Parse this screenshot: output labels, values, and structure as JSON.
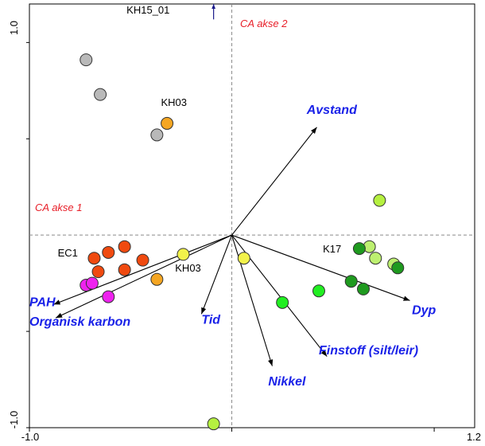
{
  "chart_data": {
    "type": "scatter",
    "xlim": [
      -1.0,
      1.2
    ],
    "ylim": [
      -1.0,
      1.2
    ],
    "x_tick_labels": [
      "-1.0",
      "1.2"
    ],
    "y_tick_labels": [
      "1.0",
      "-1.0"
    ],
    "axis_label_1": "CA akse 1",
    "axis_label_2": "CA akse 2",
    "colors": {
      "grey": "#b9b9b9",
      "orange": "#f5a623",
      "red_orange": "#f04a10",
      "magenta": "#ee22ee",
      "yellow": "#f2f24a",
      "lime": "#b5f040",
      "light_green": "#bdf070",
      "bright_green": "#22ee22",
      "dark_green": "#1f9a1f",
      "vector_text": "#1a22e8",
      "axis_text": "#e8202a",
      "arrow_blue": "#1a1a8a"
    },
    "points": [
      {
        "x": -0.72,
        "y": 0.91,
        "color": "grey"
      },
      {
        "x": -0.65,
        "y": 0.73,
        "color": "grey"
      },
      {
        "x": -0.37,
        "y": 0.52,
        "color": "grey"
      },
      {
        "x": -0.32,
        "y": 0.58,
        "color": "orange"
      },
      {
        "x": -0.68,
        "y": -0.12,
        "color": "red_orange"
      },
      {
        "x": -0.61,
        "y": -0.09,
        "color": "red_orange"
      },
      {
        "x": -0.53,
        "y": -0.06,
        "color": "red_orange"
      },
      {
        "x": -0.66,
        "y": -0.19,
        "color": "red_orange"
      },
      {
        "x": -0.53,
        "y": -0.18,
        "color": "red_orange"
      },
      {
        "x": -0.44,
        "y": -0.13,
        "color": "red_orange"
      },
      {
        "x": -0.37,
        "y": -0.23,
        "color": "orange"
      },
      {
        "x": -0.72,
        "y": -0.26,
        "color": "magenta"
      },
      {
        "x": -0.69,
        "y": -0.25,
        "color": "magenta"
      },
      {
        "x": -0.61,
        "y": -0.32,
        "color": "magenta"
      },
      {
        "x": -0.24,
        "y": -0.1,
        "color": "yellow"
      },
      {
        "x": 0.06,
        "y": -0.12,
        "color": "yellow"
      },
      {
        "x": 0.73,
        "y": 0.18,
        "color": "lime"
      },
      {
        "x": 0.68,
        "y": -0.06,
        "color": "light_green"
      },
      {
        "x": 0.71,
        "y": -0.12,
        "color": "light_green"
      },
      {
        "x": 0.8,
        "y": -0.15,
        "color": "light_green"
      },
      {
        "x": 0.63,
        "y": -0.07,
        "color": "dark_green"
      },
      {
        "x": 0.82,
        "y": -0.17,
        "color": "dark_green"
      },
      {
        "x": 0.59,
        "y": -0.24,
        "color": "dark_green"
      },
      {
        "x": 0.65,
        "y": -0.28,
        "color": "dark_green"
      },
      {
        "x": 0.43,
        "y": -0.29,
        "color": "bright_green"
      },
      {
        "x": 0.25,
        "y": -0.35,
        "color": "bright_green"
      },
      {
        "x": -0.09,
        "y": -0.98,
        "color": "lime"
      }
    ],
    "point_labels": [
      {
        "text": "KH15_01",
        "x": -0.52,
        "y": 1.15
      },
      {
        "text": "KH03",
        "x": -0.35,
        "y": 0.67
      },
      {
        "text": "EC1",
        "x": -0.86,
        "y": -0.11
      },
      {
        "text": "KH03",
        "x": -0.28,
        "y": -0.19
      },
      {
        "text": "K17",
        "x": 0.45,
        "y": -0.09
      }
    ],
    "vectors": [
      {
        "name": "Avstand",
        "x": 0.42,
        "y": 0.56
      },
      {
        "name": "PAH",
        "x": -0.88,
        "y": -0.36
      },
      {
        "name": "Organisk karbon",
        "x": -0.87,
        "y": -0.43
      },
      {
        "name": "Tid",
        "x": -0.15,
        "y": -0.41
      },
      {
        "name": "Dyp",
        "x": 0.88,
        "y": -0.34
      },
      {
        "name": "Finstoff (silt/leir)",
        "x": 0.47,
        "y": -0.63
      },
      {
        "name": "Nikkel",
        "x": 0.2,
        "y": -0.68
      }
    ],
    "vector_labels": [
      {
        "name": "Avstand",
        "x": 0.37,
        "y": 0.63
      },
      {
        "name": "PAH",
        "x": -1.0,
        "y": -0.37
      },
      {
        "name": "Organisk karbon",
        "x": -1.0,
        "y": -0.47
      },
      {
        "name": "Tid",
        "x": -0.15,
        "y": -0.46
      },
      {
        "name": "Dyp",
        "x": 0.89,
        "y": -0.41
      },
      {
        "name": "Finstoff (silt/leir)",
        "x": 0.43,
        "y": -0.62
      },
      {
        "name": "Nikkel",
        "x": 0.18,
        "y": -0.78
      }
    ],
    "short_arrow": {
      "x": -0.09,
      "y": 1.12,
      "x2": -0.09,
      "y2": 1.2
    }
  }
}
